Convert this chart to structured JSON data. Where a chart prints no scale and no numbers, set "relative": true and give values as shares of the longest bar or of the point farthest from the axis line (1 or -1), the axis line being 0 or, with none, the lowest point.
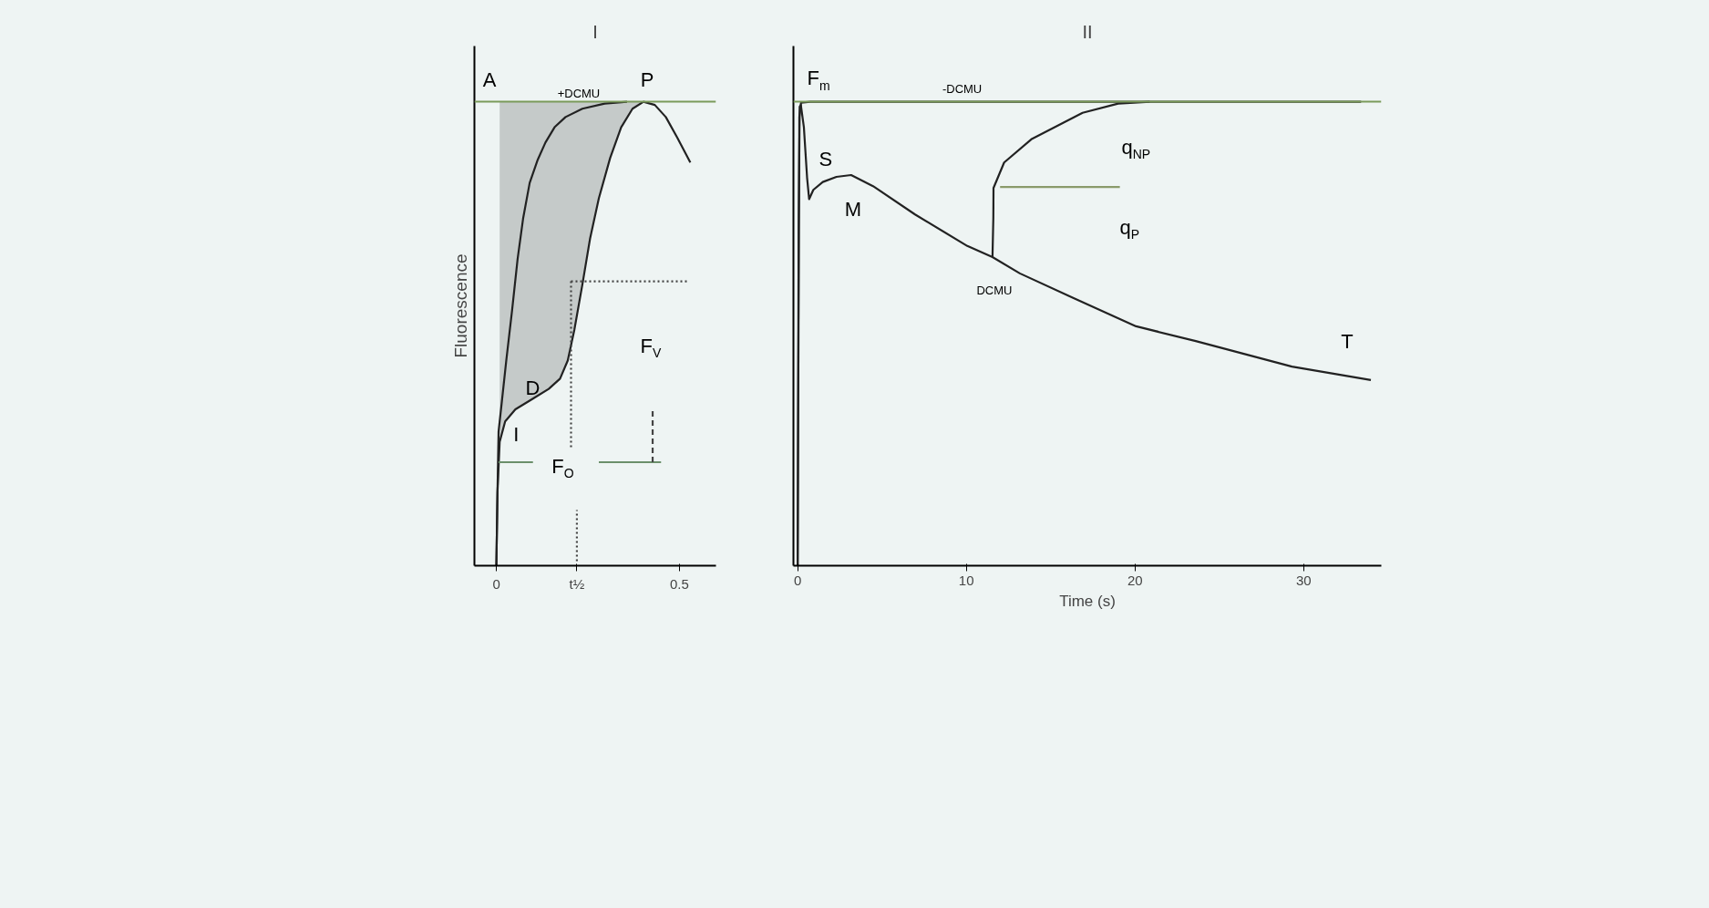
{
  "chart_data": [
    {
      "type": "line",
      "title": "I",
      "ylabel": "Fluorescence",
      "relative": true,
      "grid": false,
      "xlim": [
        -0.06,
        0.6
      ],
      "xticks": [
        0,
        {
          "value": 0.22,
          "label": "t½"
        },
        0.5
      ],
      "ref_lines": [
        {
          "axis": "y",
          "value": 1,
          "color": "#7a9a5a"
        }
      ],
      "series": [
        {
          "color": "#222222",
          "x": [
            0,
            0.003,
            0.006,
            0.015,
            0.027,
            0.043,
            0.058,
            0.073,
            0.091,
            0.113,
            0.134,
            0.159,
            0.189,
            0.235,
            0.296,
            0.357
          ],
          "values": [
            0,
            0.158,
            0.289,
            0.354,
            0.442,
            0.551,
            0.661,
            0.748,
            0.825,
            0.875,
            0.912,
            0.945,
            0.967,
            0.985,
            0.996,
            1.0
          ]
        },
        {
          "color": "#222222",
          "x": [
            0,
            0.003,
            0.009,
            0.024,
            0.052,
            0.098,
            0.143,
            0.174,
            0.195,
            0.213,
            0.235,
            0.256,
            0.28,
            0.311,
            0.341,
            0.372,
            0.402,
            0.433,
            0.463,
            0.494,
            0.53
          ],
          "values": [
            0,
            0.158,
            0.267,
            0.311,
            0.337,
            0.359,
            0.381,
            0.403,
            0.442,
            0.508,
            0.606,
            0.705,
            0.792,
            0.879,
            0.945,
            0.985,
            1.0,
            0.993,
            0.967,
            0.923,
            0.869
          ],
          "lower": [
            null,
            null,
            0.267,
            0.311,
            0.337,
            0.359,
            0.381,
            0.403,
            0.442,
            0.508,
            0.606,
            0.705,
            0.792,
            0.879,
            0.945,
            0.985,
            1.0,
            null,
            null,
            null,
            null
          ],
          "upper": [
            null,
            null,
            1,
            1,
            1,
            1,
            1,
            1,
            1,
            1,
            1,
            1,
            1,
            1,
            1,
            1,
            1,
            null,
            null,
            null,
            null
          ]
        },
        {
          "color": "#6b8f6b",
          "x": [
            0.006,
            0.1,
            null,
            0.28,
            0.45
          ],
          "values": [
            0.223,
            0.223,
            null,
            0.223,
            0.223
          ]
        },
        {
          "color": "#444444",
          "line_style": "dashed",
          "x": [
            0.427,
            0.427
          ],
          "values": [
            0.223,
            0.333
          ]
        },
        {
          "color": "#444444",
          "line_style": "dotted",
          "x": [
            0.204,
            0.524
          ],
          "values": [
            0.613,
            0.613
          ]
        },
        {
          "color": "#444444",
          "line_style": "dotted",
          "x": [
            0.204,
            0.204
          ],
          "values": [
            0.613,
            0.25
          ]
        },
        {
          "color": "#444444",
          "line_style": "dotted",
          "x": [
            0.22,
            0.22
          ],
          "values": [
            0.01,
            0.12
          ]
        }
      ],
      "annotations": [
        {
          "text": "A",
          "x": 0.006,
          "y": 1
        },
        {
          "text": "+DCMU",
          "x": 0.235,
          "y": 0.985
        },
        {
          "text": "P",
          "x": 0.402,
          "y": 1.0
        },
        {
          "text": "I",
          "x": 0.024,
          "y": 0.311
        },
        {
          "text": "D",
          "x": 0.174,
          "y": 0.403
        },
        {
          "text": "F$_{V}$",
          "x": 0.427,
          "y": 0.333
        },
        {
          "text": "F$_{O}$",
          "x": 0.1,
          "y": 0.223
        }
      ]
    },
    {
      "type": "line",
      "title": "II",
      "xlabel": "Time (s)",
      "relative": true,
      "grid": false,
      "xlim": [
        -0.25,
        34.6
      ],
      "xticks": [
        0,
        10,
        20,
        30
      ],
      "ref_lines": [
        {
          "axis": "y",
          "value": 1,
          "color": "#7a9a5a"
        }
      ],
      "series": [
        {
          "color": "#222222",
          "x": [
            0,
            0.05,
            0.1,
            0.2,
            0.75,
            33.4
          ],
          "values": [
            0,
            0.5,
            0.967,
            0.998,
            1,
            1
          ]
        },
        {
          "color": "#222222",
          "x": [
            0,
            0.06,
            0.12,
            0.19,
            0.37,
            0.56,
            0.68,
            0.93,
            1.49,
            2.3,
            3.17,
            4.47,
            6.96,
            10.06,
            11.55,
            13.17,
            16.27,
            20.06,
            23.6,
            29.3,
            33.98
          ],
          "values": [
            0,
            0.726,
            0.989,
            0.993,
            0.945,
            0.836,
            0.79,
            0.81,
            0.827,
            0.838,
            0.842,
            0.818,
            0.757,
            0.689,
            0.665,
            0.63,
            0.578,
            0.516,
            0.484,
            0.429,
            0.4
          ]
        },
        {
          "color": "#222222",
          "x": [
            11.55,
            11.6,
            11.61,
            12.24,
            13.85,
            16.89,
            19.0,
            20.87
          ],
          "values": [
            0.665,
            0.75,
            0.814,
            0.869,
            0.919,
            0.976,
            0.996,
            1.0
          ]
        },
        {
          "color": "#8a9a6a",
          "x": [
            12.0,
            19.1
          ],
          "values": [
            0.816,
            0.816
          ]
        }
      ],
      "annotations": [
        {
          "text": "F$_{m}$",
          "x": 0.75,
          "y": 1
        },
        {
          "text": "-DCMU",
          "x": 9.75,
          "y": 1
        },
        {
          "text": "S",
          "x": 0.68,
          "y": 0.79
        },
        {
          "text": "M",
          "x": 3.17,
          "y": 0.842
        },
        {
          "text": "DCMU",
          "x": 11.55,
          "y": 0.665
        },
        {
          "text": "q$_{NP}$",
          "x": 19.1,
          "y": 0.816
        },
        {
          "text": "q$_{P}$",
          "x": 19.1,
          "y": 0.816
        },
        {
          "text": "T",
          "x": 33.98,
          "y": 0.4
        }
      ]
    }
  ]
}
